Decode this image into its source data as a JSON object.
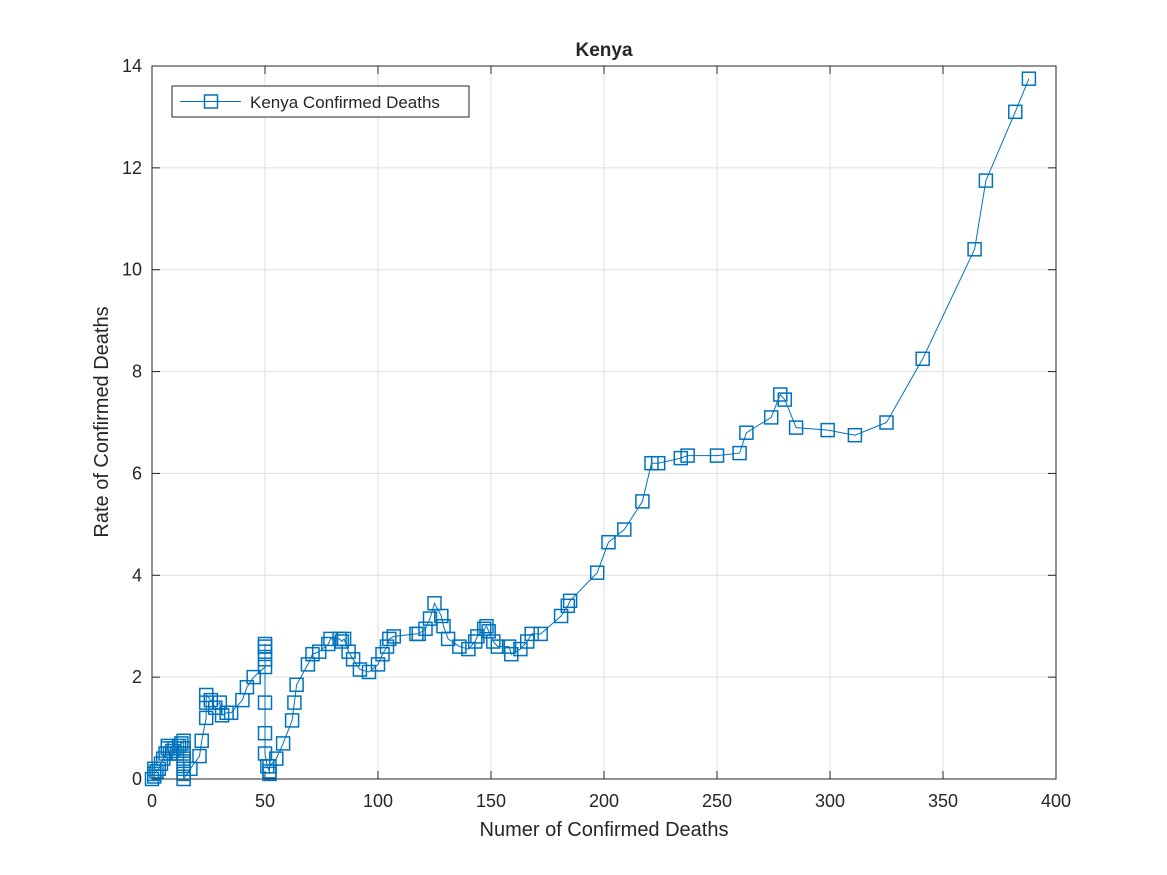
{
  "chart_data": {
    "type": "line",
    "title": "Kenya",
    "xlabel": "Numer of Confirmed Deaths",
    "ylabel": "Rate of Confirmed Deaths",
    "xlim": [
      0,
      400
    ],
    "ylim": [
      0,
      14
    ],
    "xticks": [
      0,
      50,
      100,
      150,
      200,
      250,
      300,
      350,
      400
    ],
    "yticks": [
      0,
      2,
      4,
      6,
      8,
      10,
      12,
      14
    ],
    "grid": true,
    "legend_position": "top-left",
    "line_color": "#0072BD",
    "marker": "square",
    "series": [
      {
        "name": "Kenya Confirmed Deaths",
        "points": [
          [
            0,
            0.0
          ],
          [
            1,
            0.05
          ],
          [
            1,
            0.1
          ],
          [
            1,
            0.2
          ],
          [
            2,
            0.15
          ],
          [
            3,
            0.2
          ],
          [
            4,
            0.3
          ],
          [
            5,
            0.4
          ],
          [
            6,
            0.5
          ],
          [
            7,
            0.65
          ],
          [
            7,
            0.6
          ],
          [
            8,
            0.5
          ],
          [
            9,
            0.55
          ],
          [
            10,
            0.6
          ],
          [
            11,
            0.5
          ],
          [
            12,
            0.65
          ],
          [
            13,
            0.7
          ],
          [
            14,
            0.75
          ],
          [
            14,
            0.6
          ],
          [
            14,
            0.5
          ],
          [
            14,
            0.4
          ],
          [
            14,
            0.3
          ],
          [
            14,
            0.2
          ],
          [
            14,
            0.1
          ],
          [
            14,
            0.0
          ],
          [
            17,
            0.2
          ],
          [
            21,
            0.45
          ],
          [
            22,
            0.75
          ],
          [
            24,
            1.2
          ],
          [
            24,
            1.5
          ],
          [
            24,
            1.65
          ],
          [
            26,
            1.55
          ],
          [
            28,
            1.4
          ],
          [
            30,
            1.5
          ],
          [
            31,
            1.25
          ],
          [
            33,
            1.3
          ],
          [
            35,
            1.3
          ],
          [
            40,
            1.55
          ],
          [
            42,
            1.8
          ],
          [
            45,
            2.0
          ],
          [
            50,
            2.2
          ],
          [
            50,
            2.35
          ],
          [
            50,
            2.5
          ],
          [
            50,
            2.6
          ],
          [
            50,
            2.65
          ],
          [
            50,
            1.5
          ],
          [
            50,
            0.9
          ],
          [
            50,
            0.5
          ],
          [
            51,
            0.25
          ],
          [
            52,
            0.15
          ],
          [
            52,
            0.1
          ],
          [
            52,
            0.25
          ],
          [
            55,
            0.4
          ],
          [
            58,
            0.7
          ],
          [
            62,
            1.15
          ],
          [
            63,
            1.5
          ],
          [
            64,
            1.85
          ],
          [
            69,
            2.25
          ],
          [
            71,
            2.45
          ],
          [
            74,
            2.5
          ],
          [
            78,
            2.65
          ],
          [
            79,
            2.75
          ],
          [
            83,
            2.75
          ],
          [
            84,
            2.7
          ],
          [
            85,
            2.75
          ],
          [
            87,
            2.5
          ],
          [
            89,
            2.35
          ],
          [
            92,
            2.15
          ],
          [
            96,
            2.1
          ],
          [
            100,
            2.25
          ],
          [
            102,
            2.45
          ],
          [
            104,
            2.6
          ],
          [
            105,
            2.75
          ],
          [
            107,
            2.8
          ],
          [
            117,
            2.85
          ],
          [
            118,
            2.85
          ],
          [
            121,
            2.95
          ],
          [
            123,
            3.15
          ],
          [
            125,
            3.45
          ],
          [
            128,
            3.2
          ],
          [
            129,
            3.0
          ],
          [
            131,
            2.75
          ],
          [
            136,
            2.6
          ],
          [
            140,
            2.55
          ],
          [
            143,
            2.7
          ],
          [
            144,
            2.8
          ],
          [
            147,
            2.95
          ],
          [
            148,
            3.0
          ],
          [
            149,
            2.9
          ],
          [
            151,
            2.7
          ],
          [
            153,
            2.6
          ],
          [
            158,
            2.6
          ],
          [
            159,
            2.45
          ],
          [
            163,
            2.55
          ],
          [
            166,
            2.7
          ],
          [
            168,
            2.85
          ],
          [
            172,
            2.85
          ],
          [
            181,
            3.2
          ],
          [
            184,
            3.4
          ],
          [
            185,
            3.5
          ],
          [
            197,
            4.05
          ],
          [
            202,
            4.65
          ],
          [
            209,
            4.9
          ],
          [
            217,
            5.45
          ],
          [
            221,
            6.2
          ],
          [
            224,
            6.2
          ],
          [
            234,
            6.3
          ],
          [
            237,
            6.35
          ],
          [
            250,
            6.35
          ],
          [
            260,
            6.4
          ],
          [
            263,
            6.8
          ],
          [
            274,
            7.1
          ],
          [
            278,
            7.55
          ],
          [
            280,
            7.45
          ],
          [
            285,
            6.9
          ],
          [
            299,
            6.85
          ],
          [
            311,
            6.75
          ],
          [
            325,
            7.0
          ],
          [
            341,
            8.25
          ],
          [
            364,
            10.4
          ],
          [
            369,
            11.75
          ],
          [
            382,
            13.1
          ],
          [
            388,
            13.75
          ]
        ]
      }
    ]
  }
}
